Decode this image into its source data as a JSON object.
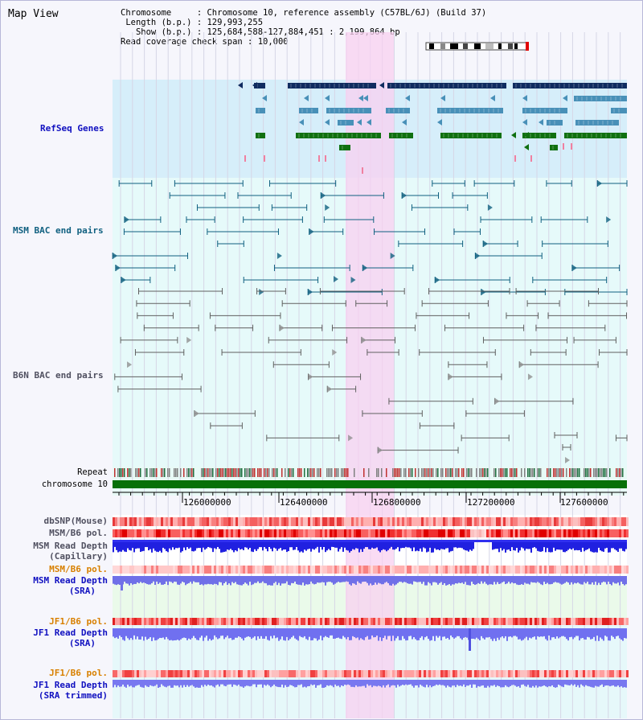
{
  "window": {
    "title": "Map View"
  },
  "info": {
    "chromosome_label": "Chromosome",
    "chromosome_value": "Chromosome 10, reference assembly (C57BL/6J) (Build 37)",
    "length_label": "Length (b.p.)",
    "length_value": "129,993,255",
    "show_label": "Show (b.p.)",
    "show_value": "125,684,588-127,884,451 : 2,199,864 bp",
    "coverage_label": "Read coverage check span",
    "coverage_value": "10,000"
  },
  "tracks": {
    "refseq": "RefSeq Genes",
    "msm_bac": "MSM BAC end pairs",
    "b6n_bac": "B6N BAC end pairs",
    "repeat": "Repeat",
    "chromosome": "chromosome 10",
    "dbsnp": "dbSNP(Mouse)",
    "msm_b6_pol": "MSM/B6 pol.",
    "msm_depth_cap_1": "MSM Read Depth",
    "msm_depth_cap_2": "(Capillary)",
    "msm_b6_pol2": "MSM/B6 pol.",
    "msm_depth_sra_1": "MSM Read Depth",
    "msm_depth_sra_2": "(SRA)",
    "jf1_b6_pol": "JF1/B6 pol.",
    "jf1_depth_sra_1": "JF1 Read Depth",
    "jf1_depth_sra_2": "(SRA)",
    "jf1_b6_pol2": "JF1/B6 pol.",
    "jf1_depth_trim_1": "JF1 Read Depth",
    "jf1_depth_trim_2": "(SRA trimmed)"
  },
  "axis": {
    "ticks": [
      "126000000",
      "126400000",
      "126800000",
      "127200000",
      "127600000"
    ]
  },
  "colors": {
    "refseq_bg": "#d6eefa",
    "bac_bg": "#e6fafa",
    "highlight": "#f8d0f0",
    "gene_dark": "#102c60",
    "gene_mid": "#4890b8",
    "gene_green": "#107010",
    "msm_bac": "#106080",
    "b6n_bac": "#606060",
    "chrom": "#087008"
  }
}
